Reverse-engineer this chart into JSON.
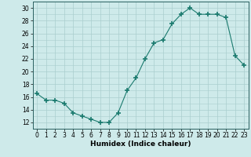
{
  "x": [
    0,
    1,
    2,
    3,
    4,
    5,
    6,
    7,
    8,
    9,
    10,
    11,
    12,
    13,
    14,
    15,
    16,
    17,
    18,
    19,
    20,
    21,
    22,
    23
  ],
  "y": [
    16.5,
    15.5,
    15.5,
    15.0,
    13.5,
    13.0,
    12.5,
    12.0,
    12.0,
    13.5,
    17.0,
    19.0,
    22.0,
    24.5,
    25.0,
    27.5,
    29.0,
    30.0,
    29.0,
    29.0,
    29.0,
    28.5,
    22.5,
    21.0
  ],
  "line_color": "#1a7a6e",
  "marker": "+",
  "marker_size": 4,
  "marker_lw": 1.2,
  "bg_color": "#ceeaea",
  "grid_color": "#aacece",
  "xlabel": "Humidex (Indice chaleur)",
  "ylim": [
    11,
    31
  ],
  "xlim": [
    -0.5,
    23.5
  ],
  "yticks": [
    12,
    14,
    16,
    18,
    20,
    22,
    24,
    26,
    28,
    30
  ],
  "xticks": [
    0,
    1,
    2,
    3,
    4,
    5,
    6,
    7,
    8,
    9,
    10,
    11,
    12,
    13,
    14,
    15,
    16,
    17,
    18,
    19,
    20,
    21,
    22,
    23
  ],
  "tick_fontsize": 5.5,
  "xlabel_fontsize": 6.5
}
